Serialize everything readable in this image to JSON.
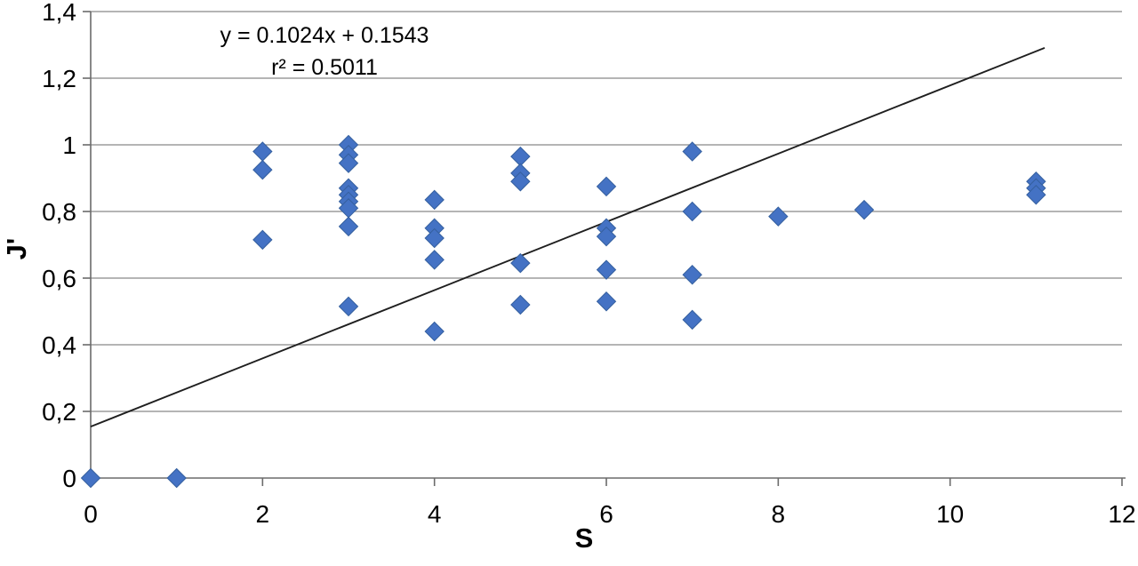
{
  "chart_data": {
    "type": "scatter",
    "xlabel": "S",
    "ylabel": "J'",
    "xlim": [
      0,
      12
    ],
    "ylim": [
      0,
      1.4
    ],
    "grid": true,
    "legend": {
      "visible": false
    },
    "x_ticks": {
      "values": [
        0,
        2,
        4,
        6,
        8,
        10,
        12
      ],
      "labels": [
        "0",
        "2",
        "4",
        "6",
        "8",
        "10",
        "12"
      ]
    },
    "y_ticks": {
      "values": [
        0,
        0.2,
        0.4,
        0.6,
        0.8,
        1,
        1.2,
        1.4
      ],
      "labels": [
        "0",
        "0,2",
        "0,4",
        "0,6",
        "0,8",
        "1",
        "1,2",
        "1,4"
      ]
    },
    "points": [
      [
        0,
        0
      ],
      [
        1,
        0
      ],
      [
        2,
        0.98
      ],
      [
        2,
        0.925
      ],
      [
        2,
        0.715
      ],
      [
        3,
        1.0
      ],
      [
        3,
        0.97
      ],
      [
        3,
        0.945
      ],
      [
        3,
        0.87
      ],
      [
        3,
        0.85
      ],
      [
        3,
        0.83
      ],
      [
        3,
        0.81
      ],
      [
        3,
        0.755
      ],
      [
        3,
        0.515
      ],
      [
        4,
        0.835
      ],
      [
        4,
        0.75
      ],
      [
        4,
        0.72
      ],
      [
        4,
        0.655
      ],
      [
        4,
        0.44
      ],
      [
        5,
        0.965
      ],
      [
        5,
        0.915
      ],
      [
        5,
        0.89
      ],
      [
        5,
        0.645
      ],
      [
        5,
        0.52
      ],
      [
        6,
        0.875
      ],
      [
        6,
        0.75
      ],
      [
        6,
        0.725
      ],
      [
        6,
        0.625
      ],
      [
        6,
        0.53
      ],
      [
        7,
        0.98
      ],
      [
        7,
        0.8
      ],
      [
        7,
        0.61
      ],
      [
        7,
        0.475
      ],
      [
        8,
        0.785
      ],
      [
        9,
        0.805
      ],
      [
        11,
        0.89
      ],
      [
        11,
        0.87
      ],
      [
        11,
        0.85
      ]
    ],
    "trendline": {
      "slope": 0.1024,
      "intercept": 0.1543,
      "x_start": 0,
      "x_end": 11.1
    },
    "annotation": {
      "line1": "y = 0.1024x + 0.1543",
      "line2": "r² = 0.5011"
    },
    "colors": {
      "marker": "#4472C4",
      "marker_edge": "#35609F",
      "trendline": "#1F1F1F",
      "gridline": "#898989",
      "axis": "#6B6B6B",
      "text": "#000000"
    }
  }
}
